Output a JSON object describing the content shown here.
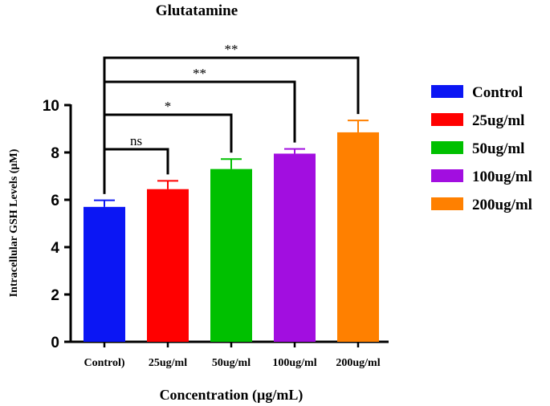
{
  "chart_data": {
    "type": "bar",
    "title": "Glutatamine",
    "xlabel": "Concentration  (µg/mL)",
    "ylabel": "Intracellular GSH Levels (µM)",
    "ylim": [
      0,
      10
    ],
    "yticks": [
      "0",
      "2",
      "4",
      "6",
      "8",
      "10"
    ],
    "categories": [
      "Control)",
      "25ug/ml",
      "50ug/ml",
      "100ug/ml",
      "200ug/ml"
    ],
    "values": [
      5.7,
      6.45,
      7.3,
      7.95,
      8.85
    ],
    "errors": [
      0.28,
      0.35,
      0.42,
      0.2,
      0.5
    ],
    "colors": [
      "#0b16f4",
      "#ff0000",
      "#00c000",
      "#a20ee0",
      "#ff8000"
    ],
    "legend": {
      "position": "right",
      "entries": [
        "Control",
        "25ug/ml",
        "50ug/ml",
        "100ug/ml",
        "200ug/ml"
      ]
    },
    "significance": [
      {
        "label": "ns",
        "from": 0,
        "to": 1
      },
      {
        "label": "*",
        "from": 0,
        "to": 2
      },
      {
        "label": "**",
        "from": 0,
        "to": 3
      },
      {
        "label": "**",
        "from": 0,
        "to": 4
      }
    ]
  }
}
